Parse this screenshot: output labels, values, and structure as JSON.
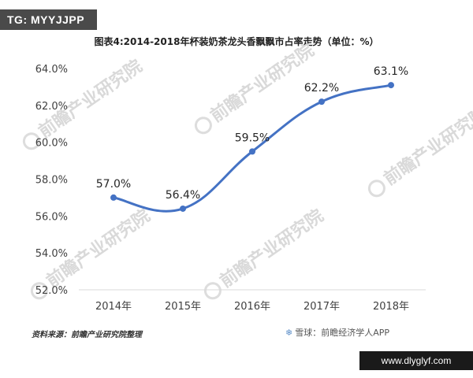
{
  "tag": "TG: MYYJJPP",
  "source_note": "资料来源：前瞻产业研究院整理",
  "watermark_text": "前瞻产业研究院",
  "xueqiu": {
    "icon": "snowball-icon",
    "text": "雪球：前瞻经济学人APP"
  },
  "site_badge": "www.dlyglyf.com",
  "chart_data": {
    "type": "line",
    "title": "图表4:2014-2018年杯装奶茶龙头香飘飘市占率走势（单位：%）",
    "categories": [
      "2014年",
      "2015年",
      "2016年",
      "2017年",
      "2018年"
    ],
    "series": [
      {
        "values": [
          57.0,
          56.4,
          59.5,
          62.2,
          63.1
        ],
        "color": "#4472c4"
      }
    ],
    "data_labels": [
      "57.0%",
      "56.4%",
      "59.5%",
      "62.2%",
      "63.1%"
    ],
    "y_ticks": [
      "52.0%",
      "54.0%",
      "56.0%",
      "58.0%",
      "60.0%",
      "62.0%",
      "64.0%"
    ],
    "ylim": [
      52,
      64
    ],
    "y_step": 2,
    "xlabel": "",
    "ylabel": "",
    "grid": false,
    "smooth": true
  }
}
